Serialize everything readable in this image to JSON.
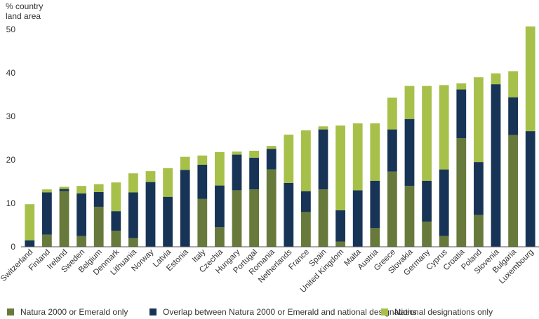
{
  "chart_data": {
    "type": "bar",
    "stacked": true,
    "ylabel_line1": "% country",
    "ylabel_line2": "land area",
    "ylim": [
      0,
      50
    ],
    "yticks": [
      0,
      10,
      20,
      30,
      40,
      50
    ],
    "categories": [
      "Switzerland",
      "Finland",
      "Ireland",
      "Sweden",
      "Belgium",
      "Denmark",
      "Lithuania",
      "Norway",
      "Latvia",
      "Estonia",
      "Italy",
      "Czechia",
      "Hungary",
      "Portugal",
      "Romania",
      "Netherlands",
      "France",
      "Spain",
      "United Kingdom",
      "Malta",
      "Austria",
      "Greece",
      "Slovakia",
      "Germany",
      "Cyprus",
      "Croatia",
      "Poland",
      "Slovenia",
      "Bulgaria",
      "Luxembourg"
    ],
    "series": [
      {
        "name": "Natura 2000 or Emerald only",
        "color": "#687a3b",
        "values": [
          0,
          2.8,
          12.8,
          2.5,
          9.2,
          3.7,
          2.0,
          0,
          0,
          0,
          11.0,
          4.5,
          13.0,
          13.2,
          17.8,
          0,
          8.0,
          13.2,
          1.2,
          0,
          4.3,
          17.3,
          14.0,
          5.8,
          2.5,
          25.0,
          7.3,
          0,
          25.7,
          0
        ]
      },
      {
        "name": "Overlap between Natura 2000 or Emerald and national designations",
        "color": "#173457",
        "values": [
          1.5,
          9.7,
          0.5,
          9.8,
          3.4,
          4.5,
          10.5,
          14.9,
          11.5,
          17.7,
          7.9,
          9.6,
          8.2,
          7.3,
          4.7,
          14.7,
          4.8,
          13.8,
          7.2,
          13.0,
          10.9,
          9.7,
          15.4,
          9.4,
          15.3,
          11.2,
          12.2,
          37.4,
          8.7,
          26.6
        ]
      },
      {
        "name": "National designations only",
        "color": "#a6c04a",
        "values": [
          8.3,
          0.7,
          0.5,
          1.7,
          1.8,
          6.6,
          4.4,
          2.5,
          6.6,
          3.0,
          2.1,
          7.7,
          0.7,
          1.6,
          0.7,
          11.1,
          14.0,
          0.7,
          19.5,
          15.4,
          13.2,
          7.3,
          7.6,
          21.8,
          19.4,
          1.4,
          19.5,
          2.5,
          6.0,
          24.1
        ]
      }
    ]
  }
}
